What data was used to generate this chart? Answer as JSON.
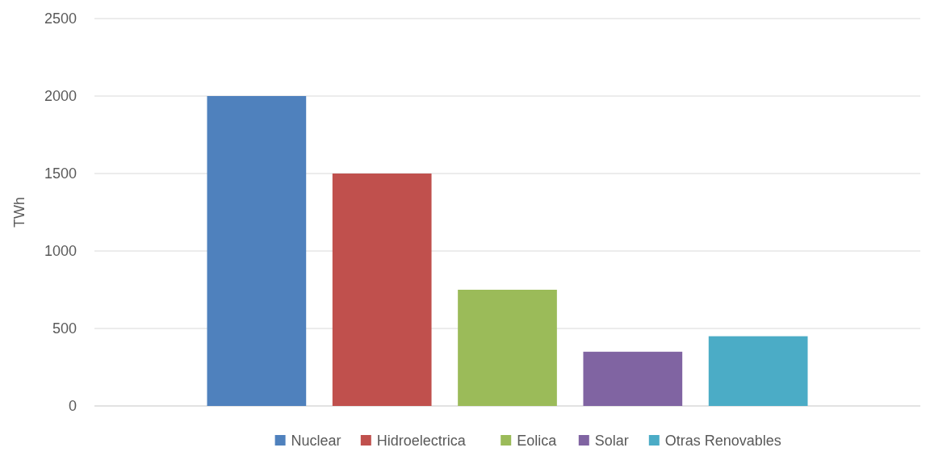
{
  "chart_data": {
    "type": "bar",
    "ylabel": "TWh",
    "categories": [
      null
    ],
    "series": [
      {
        "name": "Nuclear",
        "color": "#4f81bd",
        "values": [
          2000
        ]
      },
      {
        "name": "Hidroelectrica",
        "color": "#c0504d",
        "values": [
          1500
        ]
      },
      {
        "name": "Eolica",
        "color": "#9bbb59",
        "values": [
          750
        ]
      },
      {
        "name": "Solar",
        "color": "#8064a2",
        "values": [
          350
        ]
      },
      {
        "name": "Otras Renovables",
        "color": "#4bacc6",
        "values": [
          450
        ]
      }
    ],
    "ylim": [
      0,
      2500
    ],
    "yticks": [
      0,
      500,
      1000,
      1500,
      2000,
      2500
    ],
    "grid": "y",
    "legend": "bottom"
  }
}
